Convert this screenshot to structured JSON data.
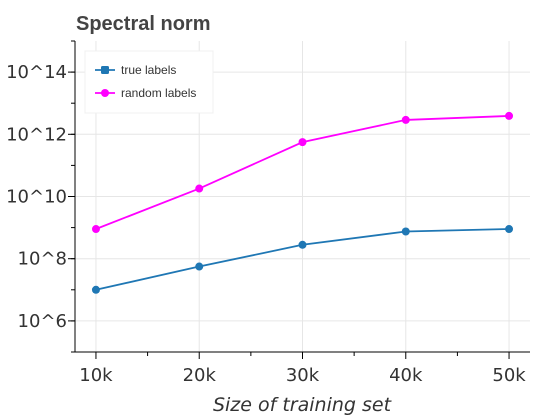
{
  "chart_data": {
    "type": "line",
    "title": "Spectral norm",
    "xlabel": "Size of training set",
    "ylabel": "",
    "x": [
      10000,
      20000,
      30000,
      40000,
      50000
    ],
    "x_tick_labels": [
      "10k",
      "20k",
      "30k",
      "40k",
      "50k"
    ],
    "y_scale": "log",
    "ylim": [
      100000,
      1000000000000000
    ],
    "y_ticks": [
      1000000,
      100000000,
      10000000000,
      1000000000000,
      100000000000000
    ],
    "y_tick_labels": [
      "10^6",
      "10^8",
      "10^10",
      "10^12",
      "10^14"
    ],
    "grid": true,
    "legend_position": "top-left",
    "series": [
      {
        "name": "true labels",
        "color": "#1f77b4",
        "values": [
          10000000,
          56000000,
          280000000,
          750000000,
          900000000
        ]
      },
      {
        "name": "random labels",
        "color": "#ff00ff",
        "values": [
          900000000,
          18000000000,
          560000000000,
          2900000000000,
          3900000000000
        ]
      }
    ]
  }
}
